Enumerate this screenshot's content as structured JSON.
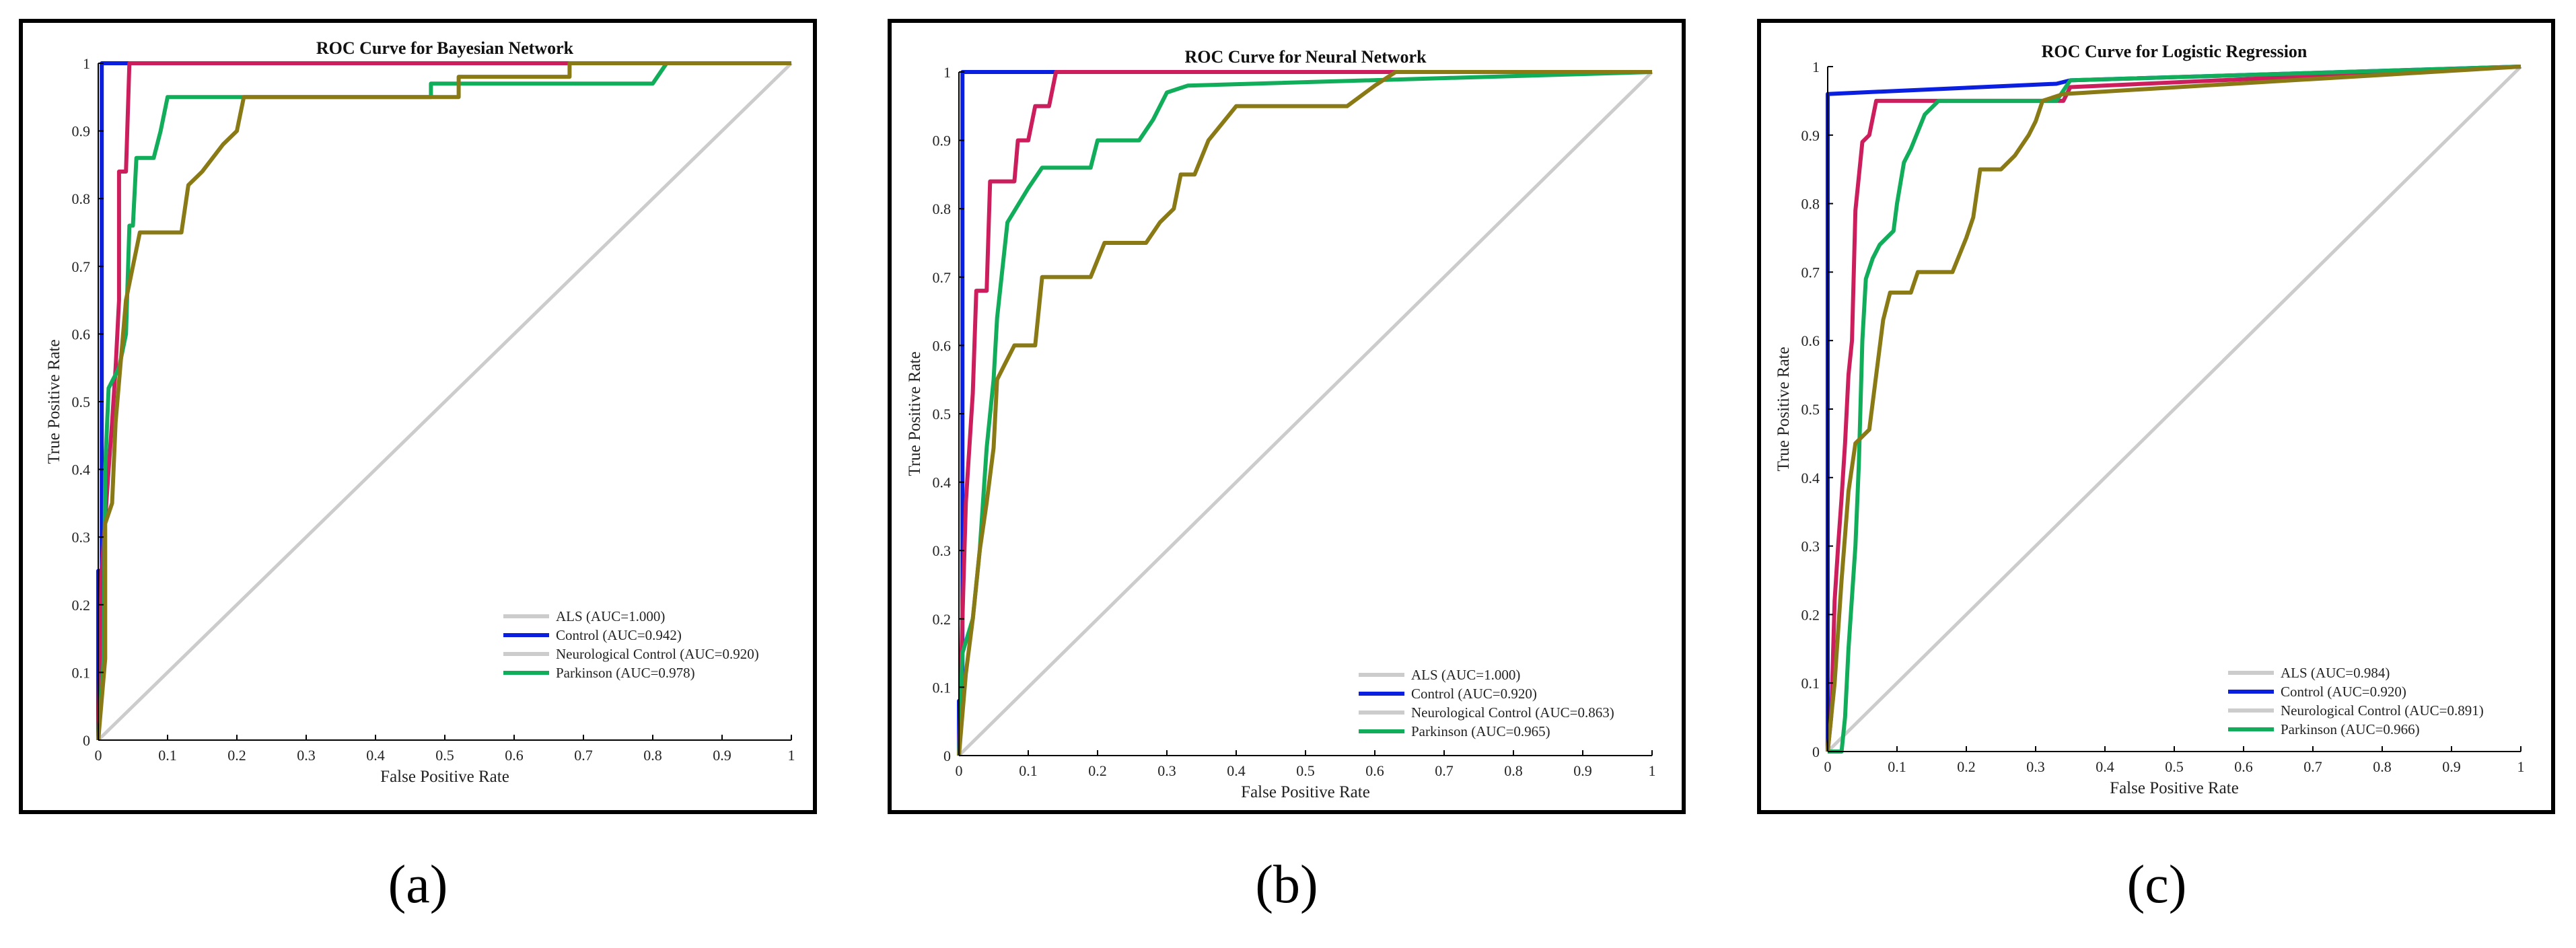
{
  "figure": {
    "captions": [
      "(a)",
      "(b)",
      "(c)"
    ],
    "colors": {
      "ALS": "#cccccc",
      "Control": "#0a1fe0",
      "Neurological Control": "#cc1e5c",
      "Parkinson": "#12ad5a",
      "Parkinson_alt": "#8a7a16",
      "frame": "#000000"
    }
  },
  "chart_data": [
    {
      "type": "line",
      "title": "ROC Curve for Bayesian Network",
      "xlabel": "False Positive Rate",
      "ylabel": "True Positive Rate",
      "xlim": [
        0,
        1
      ],
      "ylim": [
        0,
        1
      ],
      "xticks": [
        "0",
        "0.1",
        "0.2",
        "0.3",
        "0.4",
        "0.5",
        "0.6",
        "0.7",
        "0.8",
        "0.9",
        "1"
      ],
      "yticks": [
        "0",
        "0.1",
        "0.2",
        "0.3",
        "0.4",
        "0.5",
        "0.6",
        "0.7",
        "0.8",
        "0.9",
        "1"
      ],
      "legend_position": "bottom-right",
      "legend": [
        {
          "label": "ALS (AUC=1.000)",
          "color_key": "ALS"
        },
        {
          "label": "Control (AUC=0.942)",
          "color_key": "Control"
        },
        {
          "label": "Neurological Control (AUC=0.920)",
          "color_key": "ALS"
        },
        {
          "label": "Parkinson (AUC=0.978)",
          "color_key": "Parkinson"
        }
      ],
      "series": [
        {
          "name": "Diagonal",
          "color_key": "ALS",
          "points": [
            [
              0,
              0
            ],
            [
              1,
              1
            ]
          ]
        },
        {
          "name": "Control",
          "color_key": "Control",
          "points": [
            [
              0,
              0
            ],
            [
              0,
              0.25
            ],
            [
              0.005,
              0.25
            ],
            [
              0.005,
              1
            ],
            [
              1,
              1
            ]
          ]
        },
        {
          "name": "Neurological Control",
          "color_key": "Neurological Control",
          "points": [
            [
              0,
              0
            ],
            [
              0.005,
              0.25
            ],
            [
              0.015,
              0.4
            ],
            [
              0.02,
              0.47
            ],
            [
              0.025,
              0.55
            ],
            [
              0.03,
              0.65
            ],
            [
              0.03,
              0.84
            ],
            [
              0.04,
              0.84
            ],
            [
              0.045,
              1
            ],
            [
              1,
              1
            ]
          ]
        },
        {
          "name": "Parkinson",
          "color_key": "Parkinson",
          "points": [
            [
              0,
              0
            ],
            [
              0.008,
              0.12
            ],
            [
              0.01,
              0.4
            ],
            [
              0.015,
              0.52
            ],
            [
              0.03,
              0.55
            ],
            [
              0.04,
              0.6
            ],
            [
              0.045,
              0.76
            ],
            [
              0.05,
              0.76
            ],
            [
              0.055,
              0.86
            ],
            [
              0.08,
              0.86
            ],
            [
              0.09,
              0.9
            ],
            [
              0.1,
              0.95
            ],
            [
              0.48,
              0.95
            ],
            [
              0.48,
              0.97
            ],
            [
              0.8,
              0.97
            ],
            [
              0.82,
              1
            ],
            [
              1,
              1
            ]
          ]
        },
        {
          "name": "Parkinson (olive)",
          "color_key": "Parkinson_alt",
          "points": [
            [
              0,
              0
            ],
            [
              0.01,
              0.12
            ],
            [
              0.01,
              0.32
            ],
            [
              0.02,
              0.35
            ],
            [
              0.025,
              0.47
            ],
            [
              0.04,
              0.65
            ],
            [
              0.05,
              0.7
            ],
            [
              0.06,
              0.75
            ],
            [
              0.12,
              0.75
            ],
            [
              0.13,
              0.82
            ],
            [
              0.15,
              0.84
            ],
            [
              0.18,
              0.88
            ],
            [
              0.2,
              0.9
            ],
            [
              0.21,
              0.95
            ],
            [
              0.52,
              0.95
            ],
            [
              0.52,
              0.98
            ],
            [
              0.68,
              0.98
            ],
            [
              0.68,
              1
            ],
            [
              1,
              1
            ]
          ]
        }
      ]
    },
    {
      "type": "line",
      "title": "ROC Curve for Neural Network",
      "xlabel": "False Positive Rate",
      "ylabel": "True Positive Rate",
      "xlim": [
        0,
        1
      ],
      "ylim": [
        0,
        1
      ],
      "xticks": [
        "0",
        "0.1",
        "0.2",
        "0.3",
        "0.4",
        "0.5",
        "0.6",
        "0.7",
        "0.8",
        "0.9",
        "1"
      ],
      "yticks": [
        "0",
        "0.1",
        "0.2",
        "0.3",
        "0.4",
        "0.5",
        "0.6",
        "0.7",
        "0.8",
        "0.9",
        "1"
      ],
      "legend_position": "bottom-right",
      "legend": [
        {
          "label": "ALS (AUC=1.000)",
          "color_key": "ALS"
        },
        {
          "label": "Control (AUC=0.920)",
          "color_key": "Control"
        },
        {
          "label": "Neurological Control (AUC=0.863)",
          "color_key": "ALS"
        },
        {
          "label": "Parkinson (AUC=0.965)",
          "color_key": "Parkinson"
        }
      ],
      "series": [
        {
          "name": "Diagonal",
          "color_key": "ALS",
          "points": [
            [
              0,
              0
            ],
            [
              1,
              1
            ]
          ]
        },
        {
          "name": "Control",
          "color_key": "Control",
          "points": [
            [
              0,
              0
            ],
            [
              0,
              0.08
            ],
            [
              0.005,
              0.08
            ],
            [
              0.005,
              1
            ],
            [
              1,
              1
            ]
          ]
        },
        {
          "name": "Neurological Control",
          "color_key": "Neurological Control",
          "points": [
            [
              0,
              0
            ],
            [
              0.005,
              0.2
            ],
            [
              0.01,
              0.37
            ],
            [
              0.02,
              0.53
            ],
            [
              0.025,
              0.68
            ],
            [
              0.04,
              0.68
            ],
            [
              0.045,
              0.84
            ],
            [
              0.08,
              0.84
            ],
            [
              0.085,
              0.9
            ],
            [
              0.1,
              0.9
            ],
            [
              0.11,
              0.95
            ],
            [
              0.13,
              0.95
            ],
            [
              0.14,
              1
            ],
            [
              1,
              1
            ]
          ]
        },
        {
          "name": "Parkinson",
          "color_key": "Parkinson",
          "points": [
            [
              0,
              0
            ],
            [
              0.005,
              0.15
            ],
            [
              0.02,
              0.2
            ],
            [
              0.03,
              0.3
            ],
            [
              0.04,
              0.45
            ],
            [
              0.05,
              0.55
            ],
            [
              0.055,
              0.64
            ],
            [
              0.07,
              0.78
            ],
            [
              0.1,
              0.83
            ],
            [
              0.12,
              0.86
            ],
            [
              0.19,
              0.86
            ],
            [
              0.2,
              0.9
            ],
            [
              0.26,
              0.9
            ],
            [
              0.28,
              0.93
            ],
            [
              0.3,
              0.97
            ],
            [
              0.33,
              0.98
            ],
            [
              1,
              1
            ]
          ]
        },
        {
          "name": "Parkinson (olive)",
          "color_key": "Parkinson_alt",
          "points": [
            [
              0,
              0
            ],
            [
              0.01,
              0.12
            ],
            [
              0.02,
              0.2
            ],
            [
              0.03,
              0.3
            ],
            [
              0.04,
              0.37
            ],
            [
              0.05,
              0.45
            ],
            [
              0.055,
              0.55
            ],
            [
              0.065,
              0.57
            ],
            [
              0.08,
              0.6
            ],
            [
              0.11,
              0.6
            ],
            [
              0.12,
              0.7
            ],
            [
              0.19,
              0.7
            ],
            [
              0.21,
              0.75
            ],
            [
              0.27,
              0.75
            ],
            [
              0.29,
              0.78
            ],
            [
              0.31,
              0.8
            ],
            [
              0.32,
              0.85
            ],
            [
              0.34,
              0.85
            ],
            [
              0.36,
              0.9
            ],
            [
              0.4,
              0.95
            ],
            [
              0.56,
              0.95
            ],
            [
              0.6,
              0.98
            ],
            [
              0.63,
              1
            ],
            [
              1,
              1
            ]
          ]
        }
      ]
    },
    {
      "type": "line",
      "title": "ROC Curve for Logistic Regression",
      "xlabel": "False Positive Rate",
      "ylabel": "True Positive Rate",
      "xlim": [
        0,
        1
      ],
      "ylim": [
        0,
        1
      ],
      "xticks": [
        "0",
        "0.1",
        "0.2",
        "0.3",
        "0.4",
        "0.5",
        "0.6",
        "0.7",
        "0.8",
        "0.9",
        "1"
      ],
      "yticks": [
        "0",
        "0.1",
        "0.2",
        "0.3",
        "0.4",
        "0.5",
        "0.6",
        "0.7",
        "0.8",
        "0.9",
        "1"
      ],
      "legend_position": "bottom-right",
      "legend": [
        {
          "label": "ALS (AUC=0.984)",
          "color_key": "ALS"
        },
        {
          "label": "Control (AUC=0.920)",
          "color_key": "Control"
        },
        {
          "label": "Neurological Control (AUC=0.891)",
          "color_key": "ALS"
        },
        {
          "label": "Parkinson (AUC=0.966)",
          "color_key": "Parkinson"
        }
      ],
      "series": [
        {
          "name": "Diagonal",
          "color_key": "ALS",
          "points": [
            [
              0,
              0
            ],
            [
              1,
              1
            ]
          ]
        },
        {
          "name": "Control",
          "color_key": "Control",
          "points": [
            [
              0,
              0
            ],
            [
              0,
              0.96
            ],
            [
              0.33,
              0.975
            ],
            [
              0.35,
              0.98
            ],
            [
              1,
              1
            ]
          ]
        },
        {
          "name": "Neurological Control",
          "color_key": "Neurological Control",
          "points": [
            [
              0,
              0
            ],
            [
              0.005,
              0.05
            ],
            [
              0.01,
              0.22
            ],
            [
              0.015,
              0.3
            ],
            [
              0.02,
              0.37
            ],
            [
              0.025,
              0.45
            ],
            [
              0.03,
              0.55
            ],
            [
              0.035,
              0.6
            ],
            [
              0.04,
              0.79
            ],
            [
              0.05,
              0.89
            ],
            [
              0.06,
              0.9
            ],
            [
              0.07,
              0.95
            ],
            [
              0.34,
              0.95
            ],
            [
              0.35,
              0.97
            ],
            [
              1,
              1
            ]
          ]
        },
        {
          "name": "Parkinson",
          "color_key": "Parkinson",
          "points": [
            [
              0,
              0
            ],
            [
              0.02,
              0
            ],
            [
              0.025,
              0.05
            ],
            [
              0.03,
              0.15
            ],
            [
              0.04,
              0.3
            ],
            [
              0.045,
              0.42
            ],
            [
              0.05,
              0.6
            ],
            [
              0.055,
              0.69
            ],
            [
              0.065,
              0.72
            ],
            [
              0.075,
              0.74
            ],
            [
              0.095,
              0.76
            ],
            [
              0.1,
              0.8
            ],
            [
              0.11,
              0.86
            ],
            [
              0.12,
              0.88
            ],
            [
              0.14,
              0.93
            ],
            [
              0.16,
              0.95
            ],
            [
              0.33,
              0.95
            ],
            [
              0.35,
              0.98
            ],
            [
              1,
              1
            ]
          ]
        },
        {
          "name": "Parkinson (olive)",
          "color_key": "Parkinson_alt",
          "points": [
            [
              0,
              0
            ],
            [
              0.01,
              0.1
            ],
            [
              0.02,
              0.25
            ],
            [
              0.03,
              0.38
            ],
            [
              0.04,
              0.45
            ],
            [
              0.06,
              0.47
            ],
            [
              0.07,
              0.55
            ],
            [
              0.08,
              0.63
            ],
            [
              0.09,
              0.67
            ],
            [
              0.12,
              0.67
            ],
            [
              0.13,
              0.7
            ],
            [
              0.18,
              0.7
            ],
            [
              0.2,
              0.75
            ],
            [
              0.21,
              0.78
            ],
            [
              0.22,
              0.85
            ],
            [
              0.25,
              0.85
            ],
            [
              0.27,
              0.87
            ],
            [
              0.29,
              0.9
            ],
            [
              0.3,
              0.92
            ],
            [
              0.31,
              0.95
            ],
            [
              0.34,
              0.96
            ],
            [
              1,
              1
            ]
          ]
        }
      ]
    }
  ]
}
